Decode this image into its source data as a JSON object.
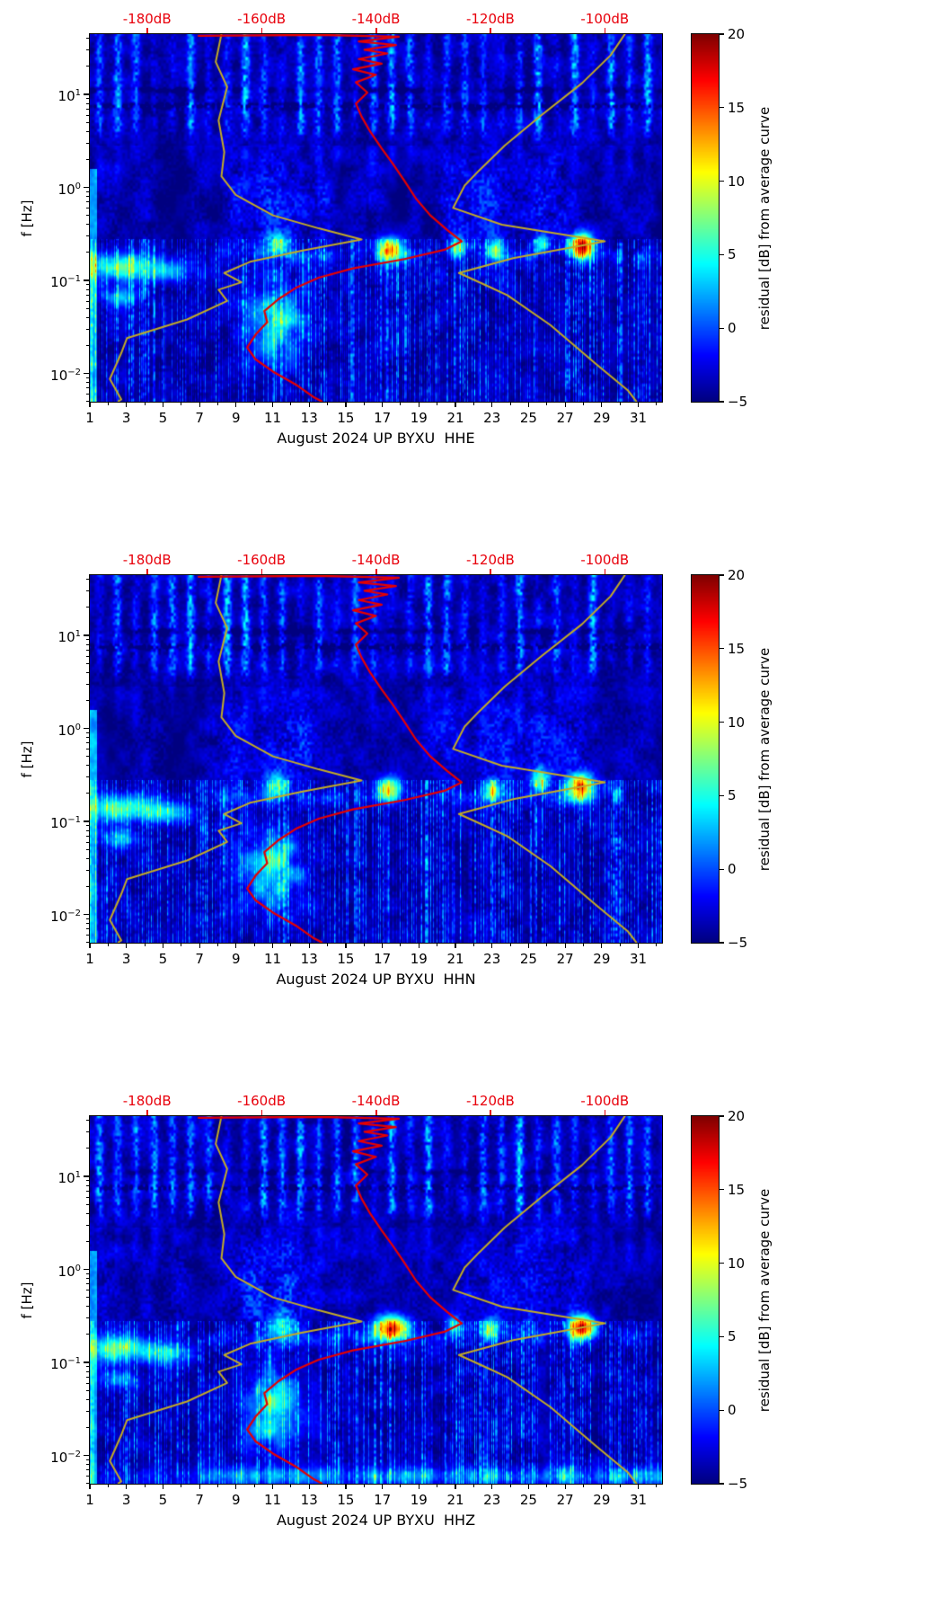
{
  "figure": {
    "background": "#ffffff"
  },
  "chart_data": {
    "type": "heatmap",
    "subtype": "seismic-noise-spectrogram-with-psd-curves",
    "panels": [
      {
        "channel": "HHE",
        "title": "August 2024 UP BYXU  HHE",
        "seed": 11
      },
      {
        "channel": "HHN",
        "title": "August 2024 UP BYXU  HHN",
        "seed": 22
      },
      {
        "channel": "HHZ",
        "title": "August 2024 UP BYXU  HHZ",
        "seed": 33
      }
    ],
    "x_axis": {
      "range_days": [
        1,
        32.3
      ],
      "major_ticks": [
        1,
        3,
        5,
        7,
        9,
        11,
        13,
        15,
        17,
        19,
        21,
        23,
        25,
        27,
        29,
        31
      ],
      "minor_ticks": [
        2,
        4,
        6,
        8,
        10,
        12,
        14,
        16,
        18,
        20,
        22,
        24,
        26,
        28,
        30,
        32
      ]
    },
    "y_axis": {
      "label": "f [Hz]",
      "scale": "log",
      "range_log10": [
        -2.304,
        1.648
      ],
      "major_ticks": [
        {
          "base": "10",
          "exp": "1"
        },
        {
          "base": "10",
          "exp": "0"
        },
        {
          "base": "10",
          "exp": "−1"
        },
        {
          "base": "10",
          "exp": "−2"
        }
      ],
      "major_tick_exponents": [
        1,
        0,
        -1,
        -2
      ]
    },
    "top_axis": {
      "color": "#e8000b",
      "range_dB": [
        -190,
        -90
      ],
      "ticks": [
        {
          "dB": -180,
          "label": "-180dB"
        },
        {
          "dB": -160,
          "label": "-160dB"
        },
        {
          "dB": -140,
          "label": "-140dB"
        },
        {
          "dB": -120,
          "label": "-120dB"
        },
        {
          "dB": -100,
          "label": "-100dB"
        }
      ]
    },
    "colorbar": {
      "label": "residual [dB] from average curve",
      "colormap": "jet",
      "range": [
        -5,
        20
      ],
      "ticks": [
        {
          "v": 20,
          "label": "20"
        },
        {
          "v": 15,
          "label": "15"
        },
        {
          "v": 10,
          "label": "10"
        },
        {
          "v": 5,
          "label": "5"
        },
        {
          "v": 0,
          "label": "0"
        },
        {
          "v": -5,
          "label": "−5"
        }
      ]
    },
    "curves": {
      "red_psd": {
        "color": "#e60000",
        "points_dB_logf": [
          [
            -171,
            1.63
          ],
          [
            -150,
            1.64
          ],
          [
            -136,
            1.62
          ],
          [
            -143,
            1.57
          ],
          [
            -136.5,
            1.53
          ],
          [
            -142,
            1.48
          ],
          [
            -138,
            1.44
          ],
          [
            -143,
            1.38
          ],
          [
            -139,
            1.33
          ],
          [
            -144,
            1.27
          ],
          [
            -140,
            1.21
          ],
          [
            -143.5,
            1.13
          ],
          [
            -141.5,
            1.02
          ],
          [
            -143.5,
            0.9
          ],
          [
            -142.5,
            0.76
          ],
          [
            -141,
            0.6
          ],
          [
            -139,
            0.42
          ],
          [
            -137,
            0.25
          ],
          [
            -135,
            0.07
          ],
          [
            -133,
            -0.12
          ],
          [
            -130.5,
            -0.3
          ],
          [
            -127.5,
            -0.46
          ],
          [
            -125,
            -0.58
          ],
          [
            -128,
            -0.67
          ],
          [
            -135,
            -0.77
          ],
          [
            -144,
            -0.87
          ],
          [
            -150,
            -0.97
          ],
          [
            -154,
            -1.08
          ],
          [
            -157,
            -1.2
          ],
          [
            -159.5,
            -1.33
          ],
          [
            -159,
            -1.45
          ],
          [
            -161,
            -1.58
          ],
          [
            -162.5,
            -1.72
          ],
          [
            -161,
            -1.85
          ],
          [
            -158,
            -1.98
          ],
          [
            -154,
            -2.12
          ],
          [
            -151,
            -2.25
          ],
          [
            -149.5,
            -2.3
          ]
        ]
      },
      "olive_low": {
        "color": "#c3ab25",
        "points_dB_logf": [
          [
            -167,
            1.648
          ],
          [
            -168,
            1.35
          ],
          [
            -166,
            1.08
          ],
          [
            -167.5,
            0.72
          ],
          [
            -166.5,
            0.38
          ],
          [
            -167,
            0.12
          ],
          [
            -164.5,
            -0.08
          ],
          [
            -158,
            -0.3
          ],
          [
            -150,
            -0.44
          ],
          [
            -142.5,
            -0.56
          ],
          [
            -153,
            -0.68
          ],
          [
            -162,
            -0.8
          ],
          [
            -166.5,
            -0.92
          ],
          [
            -163.5,
            -1.02
          ],
          [
            -167.5,
            -1.1
          ],
          [
            -166,
            -1.22
          ],
          [
            -173,
            -1.42
          ],
          [
            -183.5,
            -1.62
          ],
          [
            -184.5,
            -1.78
          ],
          [
            -186.5,
            -2.06
          ],
          [
            -184.5,
            -2.28
          ],
          [
            -185,
            -2.3
          ]
        ]
      },
      "olive_high": {
        "color": "#c3ab25",
        "points_dB_logf": [
          [
            -96.5,
            1.648
          ],
          [
            -99,
            1.42
          ],
          [
            -104,
            1.12
          ],
          [
            -111,
            0.78
          ],
          [
            -117.5,
            0.45
          ],
          [
            -122,
            0.18
          ],
          [
            -124.5,
            0.02
          ],
          [
            -126.5,
            -0.22
          ],
          [
            -118,
            -0.4
          ],
          [
            -100,
            -0.58
          ],
          [
            -116,
            -0.76
          ],
          [
            -125.5,
            -0.92
          ],
          [
            -120.5,
            -1.06
          ],
          [
            -117,
            -1.16
          ],
          [
            -109.5,
            -1.48
          ],
          [
            -101.5,
            -1.9
          ],
          [
            -96,
            -2.18
          ],
          [
            -94.5,
            -2.3
          ]
        ]
      }
    }
  }
}
